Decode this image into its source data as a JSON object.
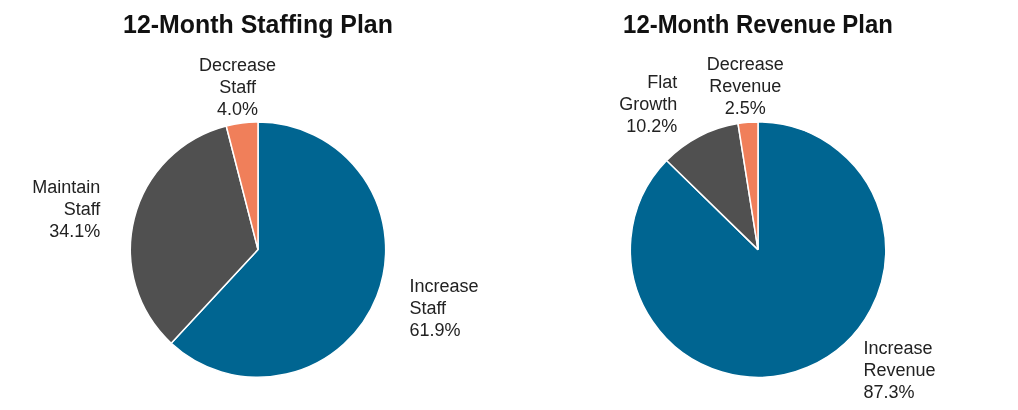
{
  "chart_data": [
    {
      "type": "pie",
      "title": "12-Month Staffing Plan",
      "categories": [
        "Increase Staff",
        "Maintain Staff",
        "Decrease Staff"
      ],
      "values": [
        61.9,
        34.1,
        4.0
      ],
      "colors": [
        "#006591",
        "#505050",
        "#f07f5a"
      ],
      "value_labels": [
        "61.9%",
        "34.1%",
        "4.0%"
      ]
    },
    {
      "type": "pie",
      "title": "12-Month Revenue Plan",
      "categories": [
        "Increase Revenue",
        "Flat Growth",
        "Decrease Revenue"
      ],
      "values": [
        87.3,
        10.2,
        2.5
      ],
      "colors": [
        "#006591",
        "#505050",
        "#f07f5a"
      ],
      "value_labels": [
        "87.3%",
        "10.2%",
        "2.5%"
      ]
    }
  ]
}
